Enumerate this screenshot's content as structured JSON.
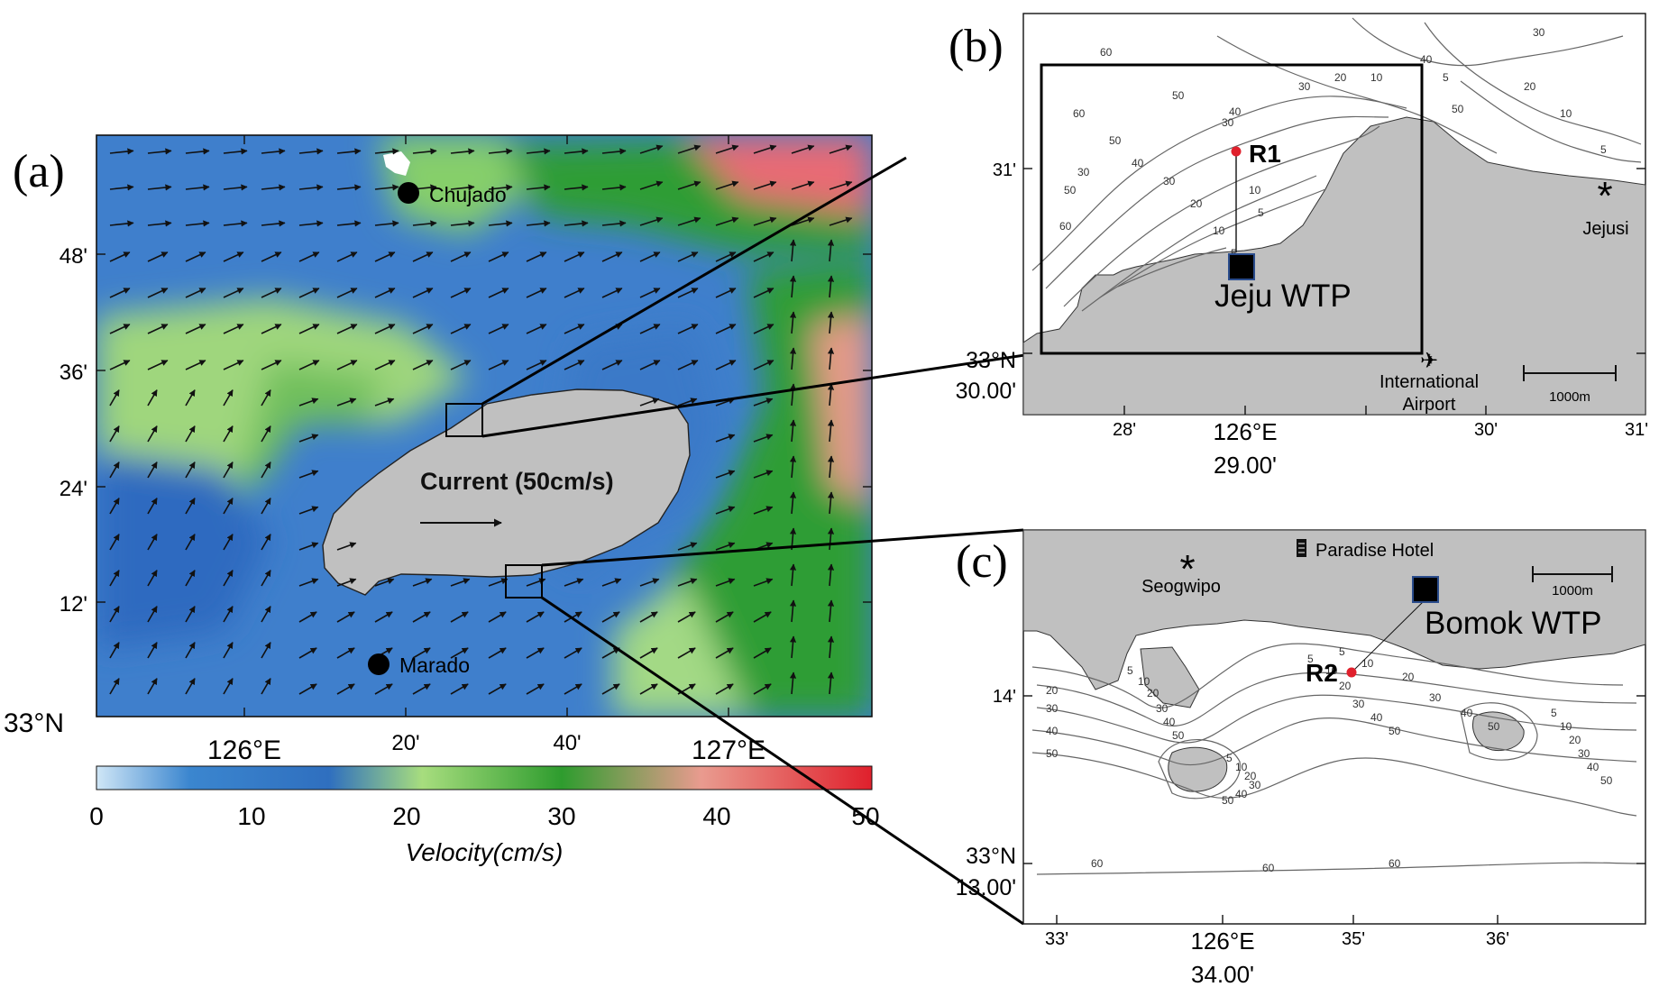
{
  "panel_a": {
    "label": "(a)",
    "lat_ticks": [
      "48'",
      "36'",
      "24'",
      "12'"
    ],
    "lat_origin": "33°N",
    "lon_ticks": [
      "126°E",
      "20'",
      "40'",
      "127°E"
    ],
    "places": [
      {
        "name": "Chujado"
      },
      {
        "name": "Marado"
      }
    ],
    "current_label": "Current (50cm/s)",
    "colorbar": {
      "ticks": [
        "0",
        "10",
        "20",
        "30",
        "40",
        "50"
      ],
      "label": "Velocity(cm/s)",
      "colors": [
        "#cfe6f6",
        "#3b86cf",
        "#2f6fbf",
        "#a7dd7e",
        "#2e9c2e",
        "#e99b8f",
        "#e0202c"
      ]
    },
    "colors": {
      "land": "#c0c0c0",
      "sea": "#3f7fcc"
    }
  },
  "panel_b": {
    "label": "(b)",
    "station": "R1",
    "wtp": "Jeju WTP",
    "city": "Jejusi",
    "airport_line1": "International",
    "airport_line2": "Airport",
    "scale": "1000m",
    "lat_ticks": [
      "31'"
    ],
    "lat_origin_line1": "33°N",
    "lat_origin_line2": "30.00'",
    "lon_ticks": [
      "28'",
      "126°E",
      "30'",
      "31'"
    ],
    "lon_sub": "29.00'",
    "contour_labels": [
      "60",
      "50",
      "40",
      "30",
      "20",
      "10",
      "5",
      "60",
      "50",
      "40",
      "30",
      "20",
      "10",
      "5",
      "30",
      "20",
      "10",
      "5",
      "60",
      "50",
      "30",
      "30",
      "10",
      "5",
      "40",
      "50"
    ]
  },
  "panel_c": {
    "label": "(c)",
    "station": "R2",
    "wtp": "Bomok WTP",
    "city": "Seogwipo",
    "hotel": "Paradise Hotel",
    "scale": "1000m",
    "lat_ticks": [
      "14'"
    ],
    "lat_origin_line1": "33°N",
    "lat_origin_line2": "13.00'",
    "lon_ticks": [
      "33'",
      "126°E",
      "35'",
      "36'"
    ],
    "lon_sub": "34.00'",
    "contour_labels": [
      "5",
      "10",
      "20",
      "30",
      "40",
      "50",
      "60",
      "60",
      "60",
      "5",
      "10",
      "20",
      "30",
      "40",
      "50",
      "5",
      "10",
      "20",
      "30",
      "40",
      "50",
      "5",
      "10",
      "20",
      "30",
      "40",
      "50",
      "5",
      "10",
      "20",
      "30",
      "40",
      "50",
      "20",
      "30",
      "40",
      "50"
    ]
  }
}
